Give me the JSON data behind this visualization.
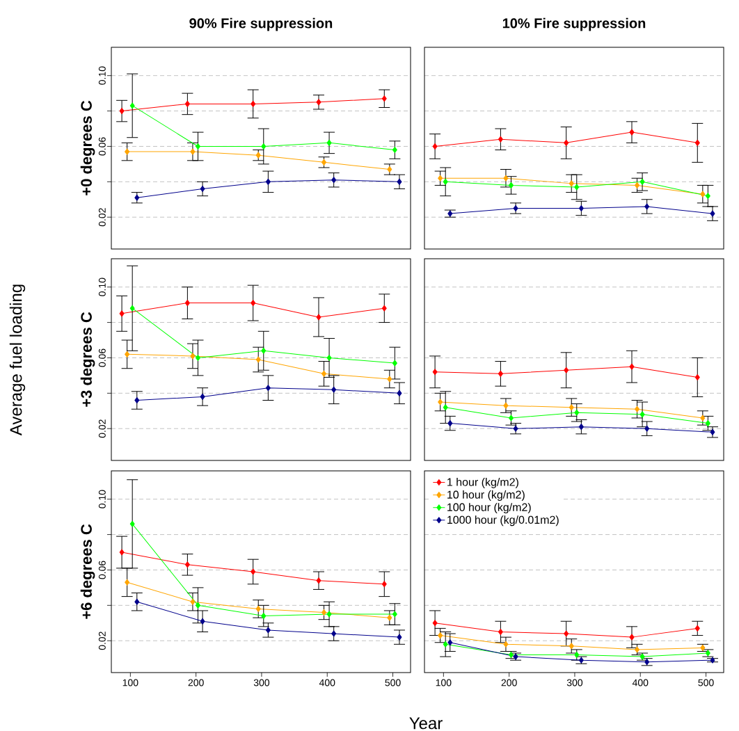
{
  "chart_data": [
    {
      "type": "line",
      "title": "90% Fire suppression",
      "ylabel": "+0 degrees C",
      "xlim": [
        71,
        527
      ],
      "ylim": [
        0.002,
        0.116
      ],
      "yticks": [
        0.02,
        {
          "value": 0.04,
          "label": null
        },
        0.06,
        {
          "value": 0.08,
          "label": null
        },
        {
          "value": 0.1,
          "label": "0.10"
        }
      ],
      "tick_labels": "y",
      "grid": "y",
      "marker": "diamond",
      "line_style": "solid",
      "series": [
        {
          "color": "#ff0000",
          "x": [
            87,
            187,
            287,
            387,
            487
          ],
          "values": [
            0.08,
            0.084,
            0.084,
            0.085,
            0.087
          ],
          "errors": [
            0.006,
            0.006,
            0.008,
            0.004,
            0.005
          ]
        },
        {
          "color": "#ffa500",
          "x": [
            95,
            195,
            295,
            395,
            495
          ],
          "values": [
            0.057,
            0.057,
            0.055,
            0.051,
            0.047
          ],
          "errors": [
            0.005,
            0.005,
            0.003,
            0.003,
            0.003
          ]
        },
        {
          "color": "#00ff00",
          "x": [
            103,
            203,
            303,
            403,
            503
          ],
          "values": [
            0.083,
            0.06,
            0.06,
            0.062,
            0.058
          ],
          "errors": [
            0.018,
            0.008,
            0.01,
            0.006,
            0.005
          ]
        },
        {
          "color": "#00008b",
          "x": [
            110,
            210,
            310,
            410,
            510
          ],
          "values": [
            0.031,
            0.036,
            0.04,
            0.041,
            0.04
          ],
          "errors": [
            0.003,
            0.004,
            0.006,
            0.004,
            0.004
          ]
        }
      ]
    },
    {
      "type": "line",
      "title": "10% Fire suppression",
      "xlim": [
        71,
        527
      ],
      "ylim": [
        0.002,
        0.116
      ],
      "yticks": [
        0.02,
        0.04,
        0.06,
        0.08,
        0.1
      ],
      "tick_labels": false,
      "grid": "y",
      "marker": "diamond",
      "line_style": "solid",
      "series": [
        {
          "color": "#ff0000",
          "x": [
            87,
            187,
            287,
            387,
            487
          ],
          "values": [
            0.06,
            0.064,
            0.062,
            0.068,
            0.062
          ],
          "errors": [
            0.007,
            0.006,
            0.009,
            0.006,
            0.011
          ]
        },
        {
          "color": "#ffa500",
          "x": [
            95,
            195,
            295,
            395,
            495
          ],
          "values": [
            0.042,
            0.042,
            0.039,
            0.038,
            0.033
          ],
          "errors": [
            0.004,
            0.005,
            0.005,
            0.004,
            0.005
          ]
        },
        {
          "color": "#00ff00",
          "x": [
            103,
            203,
            303,
            403,
            503
          ],
          "values": [
            0.04,
            0.038,
            0.037,
            0.04,
            0.032
          ],
          "errors": [
            0.008,
            0.005,
            0.007,
            0.005,
            0.006
          ]
        },
        {
          "color": "#00008b",
          "x": [
            110,
            210,
            310,
            410,
            510
          ],
          "values": [
            0.022,
            0.025,
            0.025,
            0.026,
            0.022
          ],
          "errors": [
            0.002,
            0.003,
            0.004,
            0.004,
            0.004
          ]
        }
      ]
    },
    {
      "type": "line",
      "ylabel": "+3 degrees C",
      "annotations": [
        "Average fuel loading"
      ],
      "xlim": [
        71,
        527
      ],
      "ylim": [
        0.002,
        0.116
      ],
      "yticks": [
        0.02,
        {
          "value": 0.04,
          "label": null
        },
        0.06,
        {
          "value": 0.08,
          "label": null
        },
        {
          "value": 0.1,
          "label": "0.10"
        }
      ],
      "tick_labels": "y",
      "grid": "y",
      "marker": "diamond",
      "line_style": "solid",
      "series": [
        {
          "color": "#ff0000",
          "x": [
            87,
            187,
            287,
            387,
            487
          ],
          "values": [
            0.085,
            0.091,
            0.091,
            0.083,
            0.088
          ],
          "errors": [
            0.01,
            0.009,
            0.01,
            0.011,
            0.008
          ]
        },
        {
          "color": "#ffa500",
          "x": [
            95,
            195,
            295,
            395,
            495
          ],
          "values": [
            0.062,
            0.061,
            0.059,
            0.051,
            0.048
          ],
          "errors": [
            0.008,
            0.007,
            0.007,
            0.007,
            0.005
          ]
        },
        {
          "color": "#00ff00",
          "x": [
            103,
            203,
            303,
            403,
            503
          ],
          "values": [
            0.088,
            0.06,
            0.064,
            0.06,
            0.057
          ],
          "errors": [
            0.024,
            0.01,
            0.011,
            0.011,
            0.009
          ]
        },
        {
          "color": "#00008b",
          "x": [
            110,
            210,
            310,
            410,
            510
          ],
          "values": [
            0.036,
            0.038,
            0.043,
            0.042,
            0.04
          ],
          "errors": [
            0.005,
            0.005,
            0.007,
            0.008,
            0.006
          ]
        }
      ]
    },
    {
      "type": "line",
      "xlim": [
        71,
        527
      ],
      "ylim": [
        0.002,
        0.116
      ],
      "yticks": [
        0.02,
        0.04,
        0.06,
        0.08,
        0.1
      ],
      "tick_labels": false,
      "grid": "y",
      "marker": "diamond",
      "line_style": "solid",
      "series": [
        {
          "color": "#ff0000",
          "x": [
            87,
            187,
            287,
            387,
            487
          ],
          "values": [
            0.052,
            0.051,
            0.053,
            0.055,
            0.049
          ],
          "errors": [
            0.009,
            0.007,
            0.01,
            0.009,
            0.011
          ]
        },
        {
          "color": "#ffa500",
          "x": [
            95,
            195,
            295,
            395,
            495
          ],
          "values": [
            0.035,
            0.033,
            0.032,
            0.031,
            0.026
          ],
          "errors": [
            0.005,
            0.004,
            0.005,
            0.005,
            0.004
          ]
        },
        {
          "color": "#00ff00",
          "x": [
            103,
            203,
            303,
            403,
            503
          ],
          "values": [
            0.032,
            0.026,
            0.029,
            0.028,
            0.023
          ],
          "errors": [
            0.009,
            0.004,
            0.005,
            0.007,
            0.004
          ]
        },
        {
          "color": "#00008b",
          "x": [
            110,
            210,
            310,
            410,
            510
          ],
          "values": [
            0.023,
            0.02,
            0.021,
            0.02,
            0.018
          ],
          "errors": [
            0.004,
            0.003,
            0.004,
            0.004,
            0.003
          ]
        }
      ]
    },
    {
      "type": "line",
      "ylabel": "+6 degrees C",
      "xlabel": "Year",
      "xlim": [
        71,
        527
      ],
      "ylim": [
        0.002,
        0.116
      ],
      "xticks": [
        100,
        200,
        300,
        400,
        500
      ],
      "yticks": [
        0.02,
        {
          "value": 0.04,
          "label": null
        },
        0.06,
        {
          "value": 0.08,
          "label": null
        },
        {
          "value": 0.1,
          "label": "0.10"
        }
      ],
      "grid": "y",
      "marker": "diamond",
      "line_style": "solid",
      "series": [
        {
          "color": "#ff0000",
          "x": [
            87,
            187,
            287,
            387,
            487
          ],
          "values": [
            0.07,
            0.063,
            0.059,
            0.054,
            0.052
          ],
          "errors": [
            0.009,
            0.006,
            0.007,
            0.005,
            0.007
          ]
        },
        {
          "color": "#ffa500",
          "x": [
            95,
            195,
            295,
            395,
            495
          ],
          "values": [
            0.053,
            0.042,
            0.038,
            0.036,
            0.033
          ],
          "errors": [
            0.008,
            0.005,
            0.005,
            0.004,
            0.004
          ]
        },
        {
          "color": "#00ff00",
          "x": [
            103,
            203,
            303,
            403,
            503
          ],
          "values": [
            0.086,
            0.04,
            0.034,
            0.035,
            0.035
          ],
          "errors": [
            0.025,
            0.01,
            0.006,
            0.007,
            0.006
          ]
        },
        {
          "color": "#00008b",
          "x": [
            110,
            210,
            310,
            410,
            510
          ],
          "values": [
            0.042,
            0.031,
            0.026,
            0.024,
            0.022
          ],
          "errors": [
            0.005,
            0.006,
            0.004,
            0.004,
            0.004
          ]
        }
      ]
    },
    {
      "type": "line",
      "xlim": [
        71,
        527
      ],
      "ylim": [
        0.002,
        0.116
      ],
      "xticks": [
        100,
        200,
        300,
        400,
        500
      ],
      "yticks": [
        0.02,
        0.04,
        0.06,
        0.08,
        0.1
      ],
      "tick_labels": "x",
      "grid": "y",
      "marker": "diamond",
      "line_style": "solid",
      "legend": "top left",
      "series": [
        {
          "name": "1 hour (kg/m2)",
          "color": "#ff0000",
          "x": [
            87,
            187,
            287,
            387,
            487
          ],
          "values": [
            0.03,
            0.025,
            0.024,
            0.022,
            0.027
          ],
          "errors": [
            0.007,
            0.006,
            0.007,
            0.006,
            0.004
          ]
        },
        {
          "name": "10 hour (kg/m2)",
          "color": "#ffa500",
          "x": [
            95,
            195,
            295,
            395,
            495
          ],
          "values": [
            0.023,
            0.018,
            0.017,
            0.015,
            0.016
          ],
          "errors": [
            0.004,
            0.004,
            0.004,
            0.003,
            0.002
          ]
        },
        {
          "name": "100 hour (kg/m2)",
          "color": "#00ff00",
          "x": [
            103,
            203,
            303,
            403,
            503
          ],
          "values": [
            0.018,
            0.012,
            0.012,
            0.011,
            0.013
          ],
          "errors": [
            0.007,
            0.002,
            0.003,
            0.002,
            0.002
          ]
        },
        {
          "name": "1000 hour (kg/0.01m2)",
          "color": "#00008b",
          "x": [
            110,
            210,
            310,
            410,
            510
          ],
          "values": [
            0.019,
            0.011,
            0.009,
            0.008,
            0.009
          ],
          "errors": [
            0.005,
            0.002,
            0.002,
            0.002,
            0.001
          ]
        }
      ]
    }
  ]
}
